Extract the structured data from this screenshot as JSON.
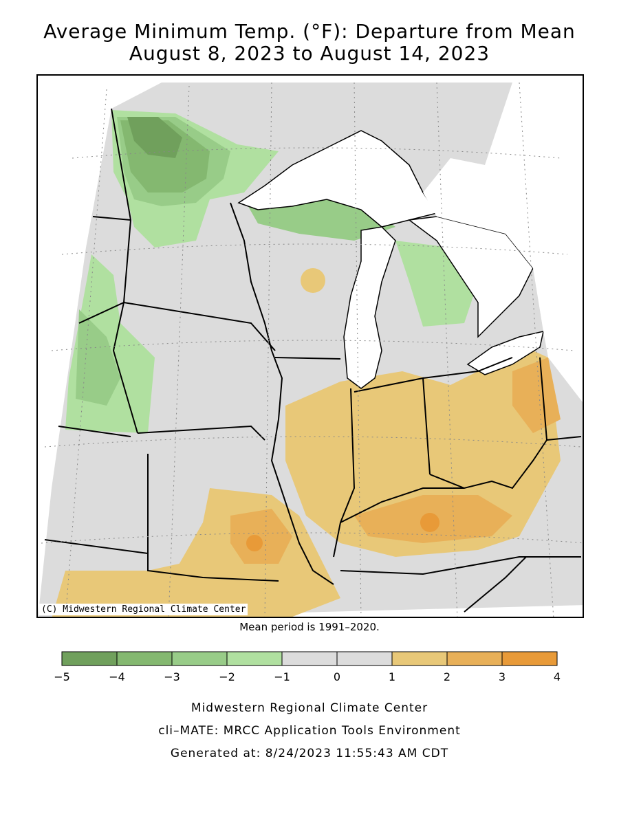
{
  "header": {
    "title_line1": "Average Minimum Temp. (°F): Departure from Mean",
    "title_line2": "August 8, 2023 to August 14, 2023"
  },
  "map": {
    "copyright": "(C) Midwestern Regional Climate Center",
    "mean_period": "Mean period is 1991–2020.",
    "colors": {
      "water": "#ffffff",
      "neutral": "#dcdcdc",
      "cool_1_2": "#b0e0a0",
      "cool_2_3": "#98cc88",
      "cool_3_4": "#84b870",
      "cool_4_5": "#70a05c",
      "warm_1_2": "#e8c878",
      "warm_2_3": "#e8b058",
      "warm_3_4": "#e89a38"
    }
  },
  "legend": {
    "tick_labels": [
      "−5",
      "−4",
      "−3",
      "−2",
      "−1",
      "0",
      "1",
      "2",
      "3",
      "4"
    ],
    "bins": [
      {
        "from": -5,
        "to": -4,
        "color": "#70a05c"
      },
      {
        "from": -4,
        "to": -3,
        "color": "#84b870"
      },
      {
        "from": -3,
        "to": -2,
        "color": "#98cc88"
      },
      {
        "from": -2,
        "to": -1,
        "color": "#b0e0a0"
      },
      {
        "from": -1,
        "to": 0,
        "color": "#dcdcdc"
      },
      {
        "from": 0,
        "to": 1,
        "color": "#dcdcdc"
      },
      {
        "from": 1,
        "to": 2,
        "color": "#e8c878"
      },
      {
        "from": 2,
        "to": 3,
        "color": "#e8b058"
      },
      {
        "from": 3,
        "to": 4,
        "color": "#e89a38"
      }
    ]
  },
  "footer": {
    "line1": "Midwestern Regional Climate Center",
    "line2": "cli–MATE: MRCC Application Tools Environment",
    "line3": "Generated at: 8/24/2023 11:55:43 AM CDT"
  }
}
